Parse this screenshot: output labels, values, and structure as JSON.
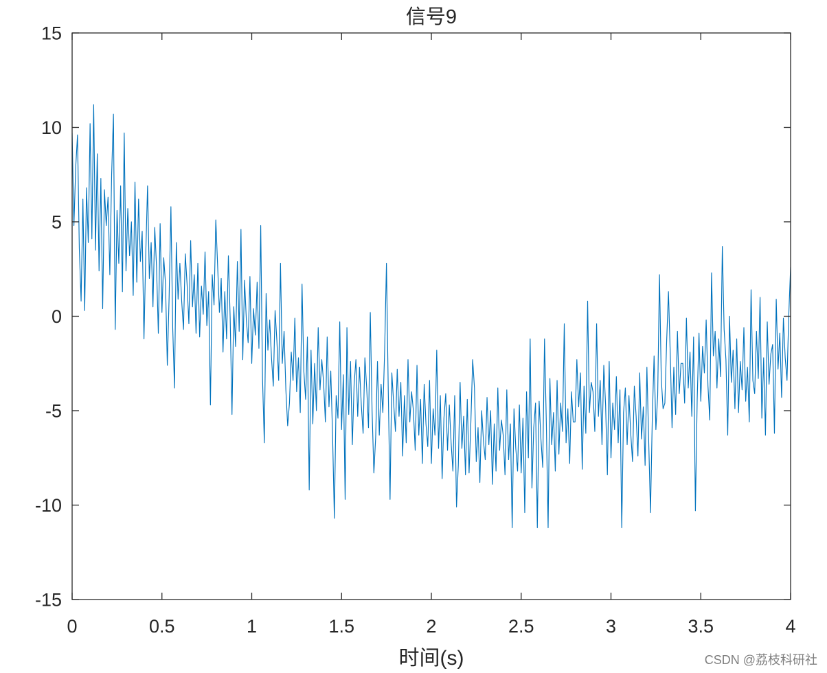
{
  "chart_data": {
    "type": "line",
    "title": "信号9",
    "xlabel": "时间(s)",
    "xlim": [
      0,
      4
    ],
    "ylim": [
      -15,
      15
    ],
    "grid": false,
    "x_ticks": [
      0,
      0.5,
      1,
      1.5,
      2,
      2.5,
      3,
      3.5,
      4
    ],
    "x_tick_labels": [
      "0",
      "0.5",
      "1",
      "1.5",
      "2",
      "2.5",
      "3",
      "3.5",
      "4"
    ],
    "y_ticks": [
      -15,
      -10,
      -5,
      0,
      5,
      10,
      15
    ],
    "y_tick_labels": [
      "-15",
      "-10",
      "-5",
      "0",
      "5",
      "10",
      "15"
    ],
    "series": [
      {
        "color": "#0072BD",
        "x": [
          0,
          0.01,
          0.02,
          0.03,
          0.04,
          0.05,
          0.06,
          0.07,
          0.08,
          0.09,
          0.1,
          0.11,
          0.12,
          0.13,
          0.14,
          0.15,
          0.16,
          0.17,
          0.18,
          0.19,
          0.2,
          0.21,
          0.22,
          0.23,
          0.24,
          0.25,
          0.26,
          0.27,
          0.28,
          0.29,
          0.3,
          0.31,
          0.32,
          0.33,
          0.34,
          0.35,
          0.36,
          0.37,
          0.38,
          0.39,
          0.4,
          0.41,
          0.42,
          0.43,
          0.44,
          0.45,
          0.46,
          0.47,
          0.48,
          0.49,
          0.5,
          0.51,
          0.52,
          0.53,
          0.54,
          0.55,
          0.56,
          0.57,
          0.58,
          0.59,
          0.6,
          0.61,
          0.62,
          0.63,
          0.64,
          0.65,
          0.66,
          0.67,
          0.68,
          0.69,
          0.7,
          0.71,
          0.72,
          0.73,
          0.74,
          0.75,
          0.76,
          0.77,
          0.78,
          0.79,
          0.8,
          0.81,
          0.82,
          0.83,
          0.84,
          0.85,
          0.86,
          0.87,
          0.88,
          0.89,
          0.9,
          0.91,
          0.92,
          0.93,
          0.94,
          0.95,
          0.96,
          0.97,
          0.98,
          0.99,
          1,
          1.01,
          1.02,
          1.03,
          1.04,
          1.05,
          1.06,
          1.07,
          1.08,
          1.09,
          1.1,
          1.11,
          1.12,
          1.13,
          1.14,
          1.15,
          1.16,
          1.17,
          1.18,
          1.19,
          1.2,
          1.21,
          1.22,
          1.23,
          1.24,
          1.25,
          1.26,
          1.27,
          1.28,
          1.29,
          1.3,
          1.31,
          1.32,
          1.33,
          1.34,
          1.35,
          1.36,
          1.37,
          1.38,
          1.39,
          1.4,
          1.41,
          1.42,
          1.43,
          1.44,
          1.45,
          1.46,
          1.47,
          1.48,
          1.49,
          1.5,
          1.51,
          1.52,
          1.53,
          1.54,
          1.55,
          1.56,
          1.57,
          1.58,
          1.59,
          1.6,
          1.61,
          1.62,
          1.63,
          1.64,
          1.65,
          1.66,
          1.67,
          1.68,
          1.69,
          1.7,
          1.71,
          1.72,
          1.73,
          1.74,
          1.75,
          1.76,
          1.77,
          1.78,
          1.79,
          1.8,
          1.81,
          1.82,
          1.83,
          1.84,
          1.85,
          1.86,
          1.87,
          1.88,
          1.89,
          1.9,
          1.91,
          1.92,
          1.93,
          1.94,
          1.95,
          1.96,
          1.97,
          1.98,
          1.99,
          2,
          2.01,
          2.02,
          2.03,
          2.04,
          2.05,
          2.06,
          2.07,
          2.08,
          2.09,
          2.1,
          2.11,
          2.12,
          2.13,
          2.14,
          2.15,
          2.16,
          2.17,
          2.18,
          2.19,
          2.2,
          2.21,
          2.22,
          2.23,
          2.24,
          2.25,
          2.26,
          2.27,
          2.28,
          2.29,
          2.3,
          2.31,
          2.32,
          2.33,
          2.34,
          2.35,
          2.36,
          2.37,
          2.38,
          2.39,
          2.4,
          2.41,
          2.42,
          2.43,
          2.44,
          2.45,
          2.46,
          2.47,
          2.48,
          2.49,
          2.5,
          2.51,
          2.52,
          2.53,
          2.54,
          2.55,
          2.56,
          2.57,
          2.58,
          2.59,
          2.6,
          2.61,
          2.62,
          2.63,
          2.64,
          2.65,
          2.66,
          2.67,
          2.68,
          2.69,
          2.7,
          2.71,
          2.72,
          2.73,
          2.74,
          2.75,
          2.76,
          2.77,
          2.78,
          2.79,
          2.8,
          2.81,
          2.82,
          2.83,
          2.84,
          2.85,
          2.86,
          2.87,
          2.88,
          2.89,
          2.9,
          2.91,
          2.92,
          2.93,
          2.94,
          2.95,
          2.96,
          2.97,
          2.98,
          2.99,
          3,
          3.01,
          3.02,
          3.03,
          3.04,
          3.05,
          3.06,
          3.07,
          3.08,
          3.09,
          3.1,
          3.11,
          3.12,
          3.13,
          3.14,
          3.15,
          3.16,
          3.17,
          3.18,
          3.19,
          3.2,
          3.21,
          3.22,
          3.23,
          3.24,
          3.25,
          3.26,
          3.27,
          3.28,
          3.29,
          3.3,
          3.31,
          3.32,
          3.33,
          3.34,
          3.35,
          3.36,
          3.37,
          3.38,
          3.39,
          3.4,
          3.41,
          3.42,
          3.43,
          3.44,
          3.45,
          3.46,
          3.47,
          3.48,
          3.49,
          3.5,
          3.51,
          3.52,
          3.53,
          3.54,
          3.55,
          3.56,
          3.57,
          3.58,
          3.59,
          3.6,
          3.61,
          3.62,
          3.63,
          3.64,
          3.65,
          3.66,
          3.67,
          3.68,
          3.69,
          3.7,
          3.71,
          3.72,
          3.73,
          3.74,
          3.75,
          3.76,
          3.77,
          3.78,
          3.79,
          3.8,
          3.81,
          3.82,
          3.83,
          3.84,
          3.85,
          3.86,
          3.87,
          3.88,
          3.89,
          3.9,
          3.91,
          3.92,
          3.93,
          3.94,
          3.95,
          3.96,
          3.97,
          3.98,
          3.99,
          4
        ],
        "y": [
          9.7,
          4.8,
          7.9,
          9.6,
          3.6,
          0.8,
          6.2,
          0.3,
          6.8,
          3.9,
          10.2,
          4.1,
          11.2,
          3.5,
          8.6,
          2.4,
          7.3,
          0.4,
          6.7,
          4.8,
          6.3,
          2.2,
          7.5,
          10.7,
          -0.7,
          5.6,
          2.8,
          6.9,
          1.3,
          9.7,
          2.4,
          5.7,
          3.2,
          5.0,
          1.1,
          7.1,
          1.8,
          6.2,
          2.9,
          4.5,
          -1.2,
          3.3,
          6.9,
          2.0,
          3.9,
          0.5,
          4.7,
          2.6,
          -0.9,
          4.9,
          0.2,
          3.1,
          1.7,
          -2.6,
          1.0,
          5.8,
          -0.6,
          -3.8,
          3.9,
          0.9,
          2.8,
          0.8,
          -0.7,
          3.3,
          1.7,
          -0.4,
          4.0,
          0.5,
          2.2,
          -0.9,
          2.8,
          -1.1,
          1.6,
          0.1,
          3.4,
          -0.5,
          1.3,
          -4.7,
          2.2,
          0.6,
          5.1,
          2.7,
          0.2,
          2.0,
          -1.9,
          1.3,
          -1.2,
          3.2,
          -0.1,
          -5.2,
          0.5,
          -1.6,
          2.9,
          -0.8,
          4.6,
          -2.3,
          1.9,
          -0.2,
          -1.4,
          2.1,
          -2.5,
          0.4,
          -1.0,
          1.8,
          -1.7,
          4.8,
          -3.3,
          -6.7,
          1.2,
          -1.8,
          -0.2,
          -2.2,
          -3.7,
          0.3,
          -1.3,
          -3.4,
          2.8,
          -2.5,
          -0.8,
          -3.9,
          -5.8,
          -4.6,
          -1.9,
          -3.4,
          -0.1,
          -4.0,
          -2.2,
          -5.1,
          1.7,
          -2.9,
          -4.4,
          -1.1,
          -9.2,
          -1.8,
          -5.7,
          -2.5,
          -5.0,
          -0.6,
          -3.9,
          -2.3,
          -3.5,
          -5.6,
          -1.1,
          -4.8,
          -2.9,
          -6.3,
          -10.7,
          -4.2,
          -5.4,
          -0.3,
          -6.0,
          -3.1,
          -9.7,
          -0.6,
          -5.2,
          -2.4,
          -6.8,
          -3.6,
          -2.3,
          -5.3,
          -2.7,
          -4.7,
          -6.2,
          -2.2,
          -3.8,
          -5.9,
          0.2,
          -5.0,
          -8.3,
          -6.4,
          -2.4,
          -6.3,
          -3.6,
          -5.1,
          -1.8,
          2.8,
          -3.9,
          -9.7,
          -3.0,
          -4.6,
          -6.1,
          -2.8,
          -5.3,
          -3.5,
          -7.4,
          -4.2,
          -6.7,
          -2.3,
          -5.6,
          -4.0,
          -5.0,
          -7.1,
          -2.6,
          -6.3,
          -4.4,
          -7.8,
          -3.6,
          -5.7,
          -6.9,
          -3.4,
          -7.8,
          -4.9,
          -6.3,
          -1.8,
          -7.0,
          -4.2,
          -8.6,
          -5.4,
          -4.1,
          -7.1,
          -4.7,
          -6.7,
          -8.2,
          -4.2,
          -10.1,
          -7.9,
          -3.5,
          -7.0,
          -5.3,
          -8.4,
          -4.4,
          -8.3,
          -5.6,
          -2.3,
          -3.8,
          -7.7,
          -5.9,
          -8.8,
          -5.0,
          -6.6,
          -7.6,
          -4.3,
          -6.8,
          -5.0,
          -8.9,
          -5.7,
          -8.2,
          -3.8,
          -7.1,
          -5.5,
          -6.3,
          -8.4,
          -3.9,
          -7.6,
          -5.7,
          -11.2,
          -4.9,
          -7.0,
          -8.2,
          -4.7,
          -8.3,
          -5.4,
          -10.4,
          -4.0,
          -7.5,
          -1.2,
          -9.1,
          -5.9,
          -4.6,
          -11.2,
          -4.5,
          -6.5,
          -8.0,
          -1.2,
          -5.6,
          -11.2,
          -3.3,
          -6.8,
          -5.1,
          -8.2,
          -3.4,
          -7.3,
          -4.6,
          -6.1,
          -0.4,
          -6.7,
          -4.9,
          -7.8,
          -4.0,
          -5.6,
          -5.6,
          -2.3,
          -4.8,
          -3.0,
          -8.1,
          -3.7,
          -6.2,
          0.8,
          -5.1,
          -3.5,
          -4.0,
          -6.1,
          -0.4,
          -5.3,
          -3.4,
          -6.8,
          -2.6,
          -4.7,
          -8.4,
          -2.4,
          -7.5,
          -4.6,
          -6.0,
          -3.2,
          -6.7,
          -3.9,
          -11.2,
          -5.1,
          -3.8,
          -6.8,
          -4.2,
          -6.2,
          -7.7,
          -3.7,
          -5.3,
          -7.4,
          -3.0,
          -6.5,
          -4.8,
          -7.9,
          -2.7,
          -6.6,
          -10.4,
          -5.4,
          -2.1,
          -6.0,
          -4.2,
          2.2,
          -3.3,
          -4.9,
          -4.6,
          -1.3,
          1.3,
          -2.0,
          -5.9,
          -2.7,
          -5.2,
          -0.8,
          -4.1,
          -2.5,
          -2.5,
          -4.6,
          -0.1,
          -3.8,
          -1.9,
          -5.3,
          -1.1,
          -10.3,
          -4.4,
          -0.9,
          -4.5,
          -1.6,
          -3.0,
          -0.2,
          -3.7,
          -5.5,
          2.3,
          -2.1,
          -0.8,
          -3.8,
          -1.2,
          -3.2,
          3.7,
          -0.7,
          -2.3,
          -6.3,
          0.0,
          -3.5,
          -1.8,
          -4.9,
          -1.2,
          -5.1,
          -2.4,
          -3.9,
          -0.6,
          -4.5,
          -2.7,
          -5.6,
          1.4,
          -3.4,
          -4.1,
          -0.8,
          -3.3,
          1.0,
          -5.4,
          -2.2,
          -6.3,
          -0.3,
          -3.6,
          -2.0,
          -1.5,
          -6.2,
          0.9,
          -2.8,
          -0.9,
          -4.3,
          -0.1,
          -2.2,
          -3.4,
          0.1,
          2.6
        ]
      }
    ]
  },
  "watermark": "CSDN @荔枝科研社"
}
